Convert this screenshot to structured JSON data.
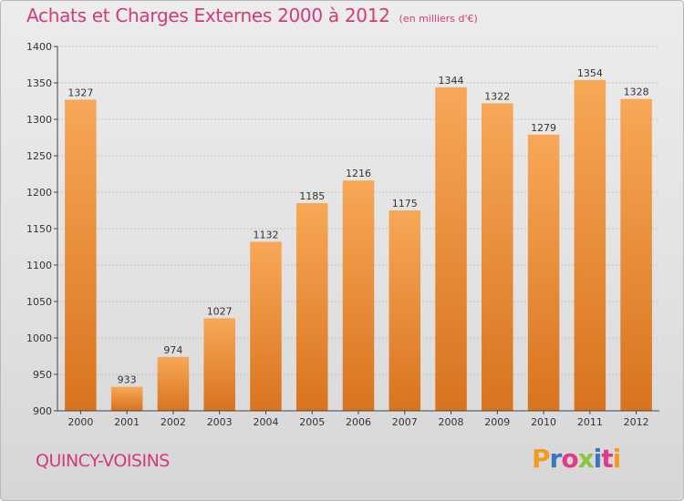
{
  "header": {
    "title": "Achats et Charges Externes 2000 à 2012",
    "unit": "(en milliers d'€)"
  },
  "footer": {
    "commune": "QUINCY-VOISINS",
    "logo_letters": [
      "P",
      "r",
      "o",
      "x",
      "i",
      "t",
      "i"
    ],
    "logo_colors": [
      "#f39a1f",
      "#3b74c3",
      "#e23a87",
      "#8bc43f",
      "#3b74c3",
      "#e23a87",
      "#f39a1f"
    ]
  },
  "colors": {
    "bar_top": "#f7a857",
    "bar_bottom": "#d9731e",
    "accent": "#d23a7c",
    "axis": "#444444",
    "grid": "#bfbfbf"
  },
  "chart_data": {
    "type": "bar",
    "categories": [
      "2000",
      "2001",
      "2002",
      "2003",
      "2004",
      "2005",
      "2006",
      "2007",
      "2008",
      "2009",
      "2010",
      "2011",
      "2012"
    ],
    "values": [
      1327,
      933,
      974,
      1027,
      1132,
      1185,
      1216,
      1175,
      1344,
      1322,
      1279,
      1354,
      1328
    ],
    "ylim": [
      900,
      1400
    ],
    "yticks": [
      900,
      950,
      1000,
      1050,
      1100,
      1150,
      1200,
      1250,
      1300,
      1350,
      1400
    ],
    "grid": true,
    "xlabel": "",
    "ylabel": ""
  }
}
